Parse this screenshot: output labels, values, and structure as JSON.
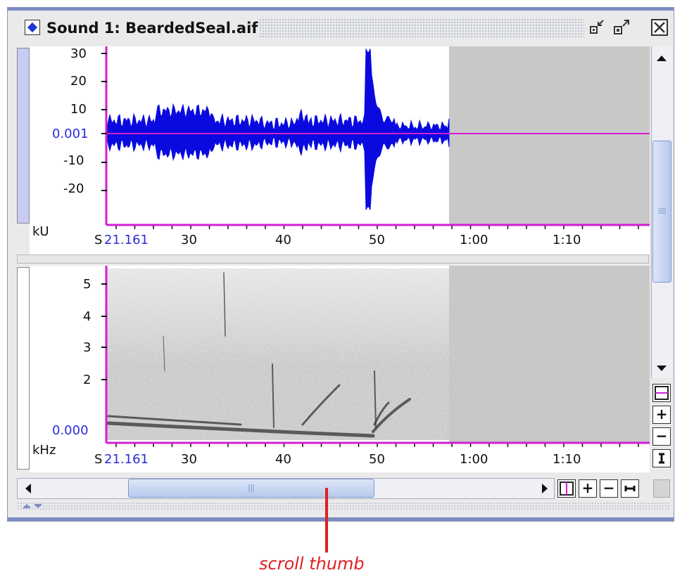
{
  "window": {
    "title": "Sound 1: BeardedSeal.aif"
  },
  "waveform": {
    "unit_label": "kU",
    "y_ticks": [
      "30",
      "20",
      "10",
      "0.001",
      "-10",
      "-20"
    ],
    "time_prefix": "S",
    "time_start": "21.161",
    "time_ticks": [
      "30",
      "40",
      "50",
      "1:00",
      "1:10"
    ]
  },
  "spectrogram": {
    "unit_label": "kHz",
    "y_ticks": [
      "5",
      "4",
      "3",
      "2",
      "0.000"
    ],
    "time_prefix": "S",
    "time_start": "21.161",
    "time_ticks": [
      "30",
      "40",
      "50",
      "1:00",
      "1:10"
    ]
  },
  "controls": {
    "v_zoom_in": "+",
    "v_zoom_out": "−",
    "h_zoom_in": "+",
    "h_zoom_out": "−"
  },
  "annotation": {
    "label": "scroll thumb"
  },
  "colors": {
    "waveform": "#0a0ae0",
    "axis_magenta": "#d31ed3",
    "value_blue": "#2c2cd8",
    "callout_red": "#e02020",
    "selection_blue": "#c8cbf5"
  }
}
